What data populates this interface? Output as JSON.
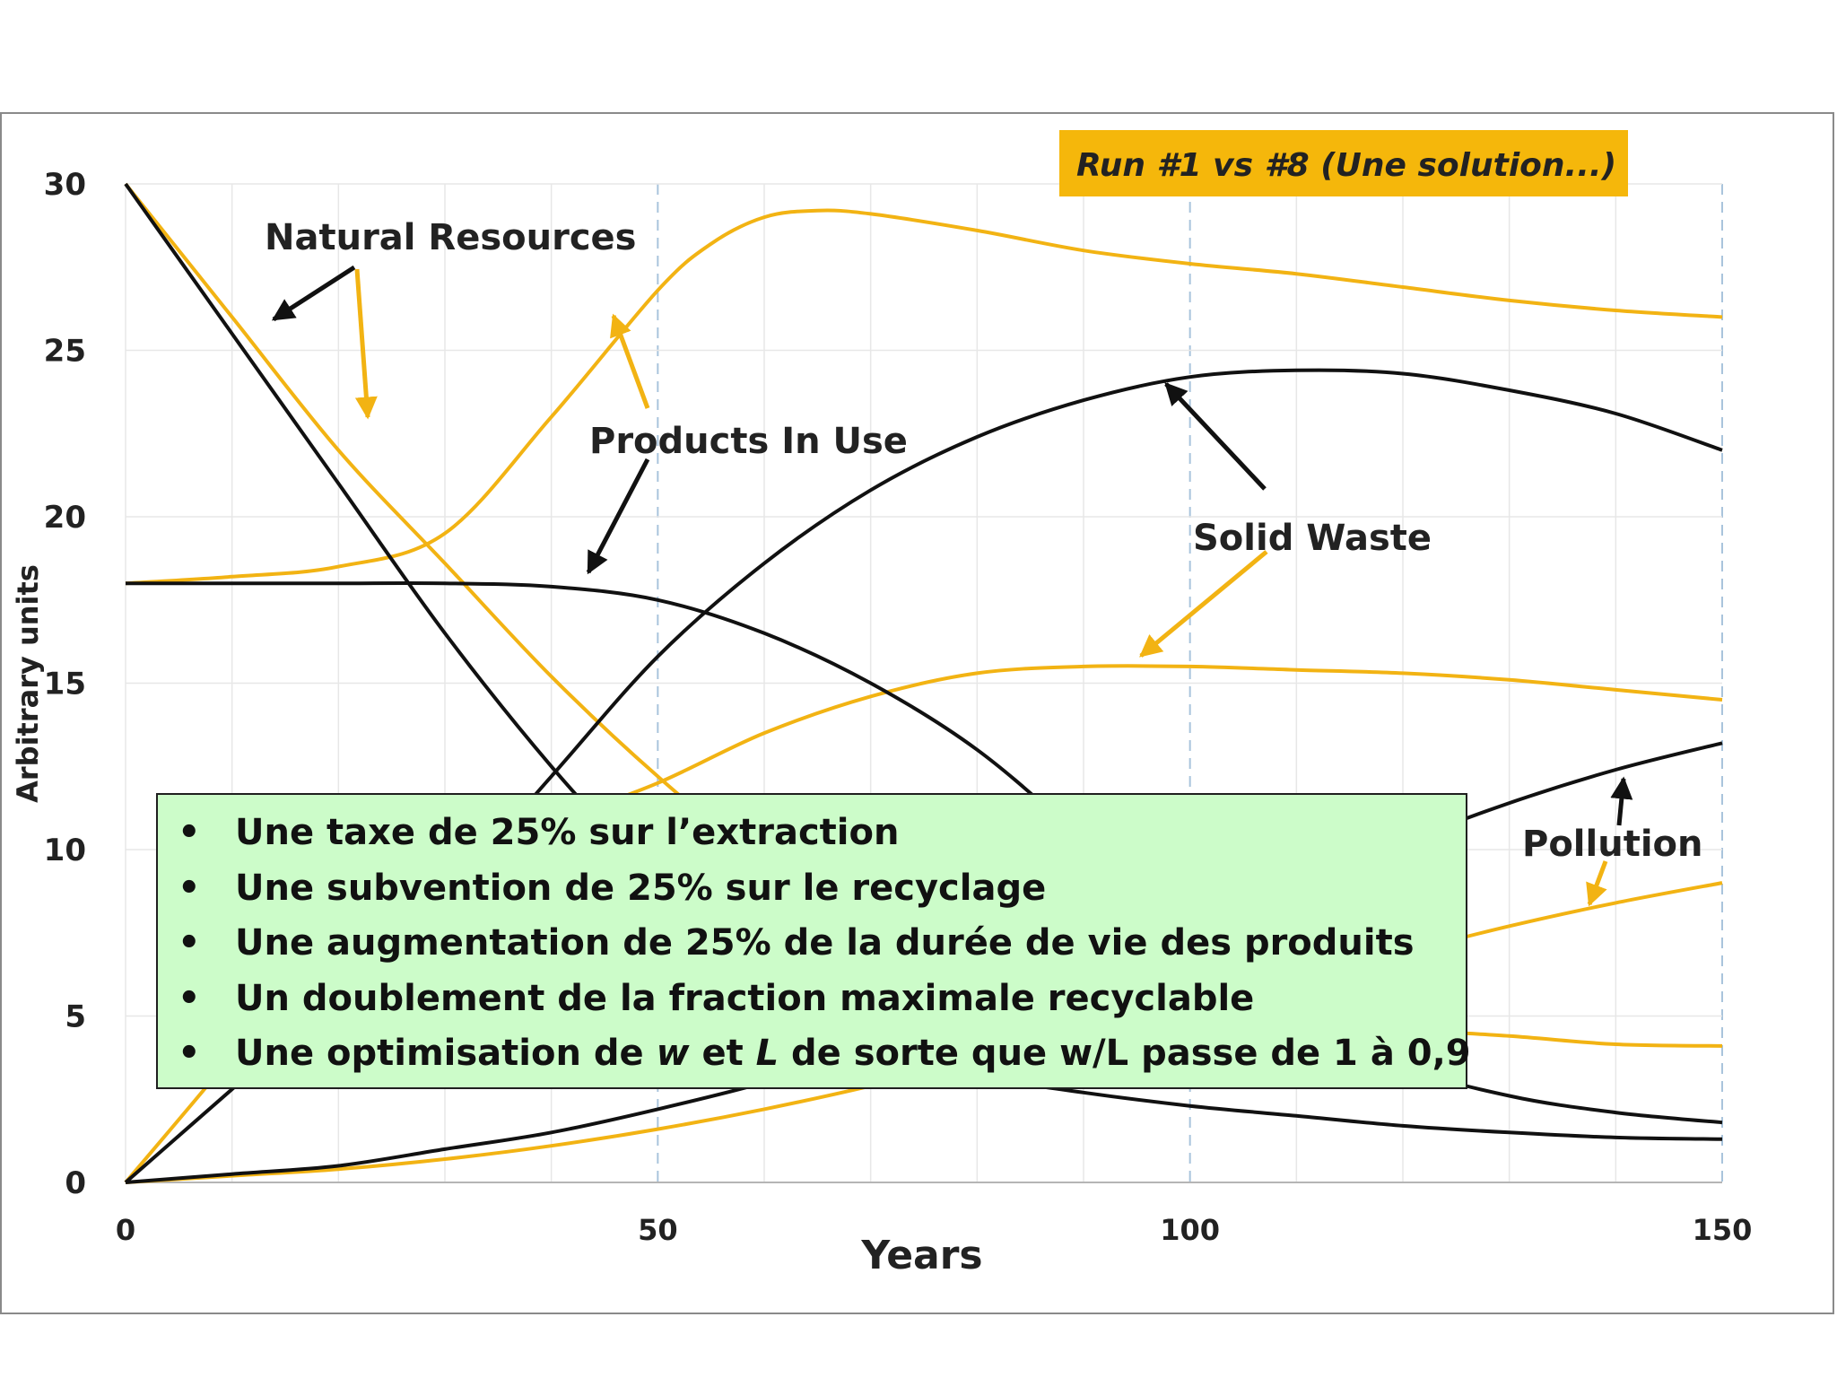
{
  "chart_data": {
    "type": "line",
    "title": "",
    "xlabel": "Years",
    "ylabel": "Arbitrary units",
    "xlim": [
      0,
      150
    ],
    "ylim": [
      0,
      30
    ],
    "x_ticks": [
      "0",
      "50",
      "100",
      "150"
    ],
    "y_ticks": [
      "0",
      "5",
      "10",
      "15",
      "20",
      "25",
      "30"
    ],
    "grid": true,
    "legend_box": "Run #1 vs #8 (Une solution...)",
    "run_colors": {
      "run1": "#111111",
      "run8": "#f2b313"
    },
    "series": [
      {
        "run": "run1",
        "points": [
          [
            0,
            30
          ],
          [
            10,
            25.5
          ],
          [
            20,
            21
          ],
          [
            30,
            16.5
          ],
          [
            40,
            12.5
          ],
          [
            50,
            9
          ],
          [
            60,
            5.8
          ],
          [
            70,
            4.0
          ],
          [
            80,
            3.2
          ],
          [
            90,
            2.7
          ],
          [
            100,
            2.3
          ],
          [
            110,
            2.0
          ],
          [
            120,
            1.7
          ],
          [
            130,
            1.5
          ],
          [
            140,
            1.35
          ],
          [
            150,
            1.3
          ]
        ]
      },
      {
        "run": "run8",
        "points": [
          [
            0,
            30
          ],
          [
            10,
            26
          ],
          [
            20,
            22
          ],
          [
            30,
            18.6
          ],
          [
            40,
            15.2
          ],
          [
            50,
            12.2
          ],
          [
            60,
            9.6
          ],
          [
            70,
            7.8
          ],
          [
            80,
            6.7
          ],
          [
            90,
            5.9
          ],
          [
            100,
            5.3
          ],
          [
            110,
            4.9
          ],
          [
            120,
            4.6
          ],
          [
            130,
            4.4
          ],
          [
            140,
            4.15
          ],
          [
            150,
            4.1
          ]
        ]
      },
      {
        "run": "run1",
        "points": [
          [
            0,
            18
          ],
          [
            10,
            18
          ],
          [
            20,
            18
          ],
          [
            30,
            18
          ],
          [
            40,
            17.9
          ],
          [
            50,
            17.5
          ],
          [
            60,
            16.5
          ],
          [
            70,
            15
          ],
          [
            80,
            13
          ],
          [
            90,
            10.3
          ],
          [
            100,
            7.5
          ],
          [
            110,
            5.2
          ],
          [
            120,
            3.5
          ],
          [
            130,
            2.6
          ],
          [
            140,
            2.1
          ],
          [
            150,
            1.8
          ]
        ]
      },
      {
        "run": "run8",
        "points": [
          [
            0,
            18
          ],
          [
            10,
            18.2
          ],
          [
            20,
            18.5
          ],
          [
            30,
            19.5
          ],
          [
            40,
            23
          ],
          [
            50,
            26.8
          ],
          [
            55,
            28.2
          ],
          [
            60,
            29
          ],
          [
            65,
            29.2
          ],
          [
            70,
            29.1
          ],
          [
            80,
            28.6
          ],
          [
            90,
            28
          ],
          [
            100,
            27.6
          ],
          [
            110,
            27.3
          ],
          [
            120,
            26.9
          ],
          [
            130,
            26.5
          ],
          [
            140,
            26.2
          ],
          [
            150,
            26
          ]
        ]
      },
      {
        "run": "run1",
        "points": [
          [
            0,
            0
          ],
          [
            10,
            2.8
          ],
          [
            20,
            5.6
          ],
          [
            30,
            8.6
          ],
          [
            40,
            12.2
          ],
          [
            50,
            15.8
          ],
          [
            60,
            18.6
          ],
          [
            70,
            20.8
          ],
          [
            80,
            22.4
          ],
          [
            90,
            23.5
          ],
          [
            100,
            24.2
          ],
          [
            110,
            24.4
          ],
          [
            120,
            24.3
          ],
          [
            130,
            23.8
          ],
          [
            140,
            23.1
          ],
          [
            150,
            22
          ]
        ]
      },
      {
        "run": "run8",
        "points": [
          [
            0,
            0
          ],
          [
            10,
            3.8
          ],
          [
            20,
            7.8
          ],
          [
            30,
            9.5
          ],
          [
            40,
            10.8
          ],
          [
            50,
            12
          ],
          [
            60,
            13.5
          ],
          [
            70,
            14.6
          ],
          [
            80,
            15.3
          ],
          [
            90,
            15.5
          ],
          [
            100,
            15.5
          ],
          [
            110,
            15.4
          ],
          [
            120,
            15.3
          ],
          [
            130,
            15.1
          ],
          [
            140,
            14.8
          ],
          [
            150,
            14.5
          ]
        ]
      },
      {
        "run": "run1",
        "points": [
          [
            0,
            0
          ],
          [
            10,
            0.25
          ],
          [
            20,
            0.5
          ],
          [
            30,
            1
          ],
          [
            40,
            1.5
          ],
          [
            50,
            2.2
          ],
          [
            60,
            3
          ],
          [
            70,
            4
          ],
          [
            80,
            5
          ],
          [
            90,
            6.2
          ],
          [
            100,
            7.5
          ],
          [
            110,
            8.8
          ],
          [
            120,
            10.2
          ],
          [
            130,
            11.4
          ],
          [
            140,
            12.4
          ],
          [
            150,
            13.2
          ]
        ]
      },
      {
        "run": "run8",
        "points": [
          [
            0,
            0
          ],
          [
            10,
            0.2
          ],
          [
            20,
            0.4
          ],
          [
            30,
            0.7
          ],
          [
            40,
            1.1
          ],
          [
            50,
            1.6
          ],
          [
            60,
            2.2
          ],
          [
            70,
            2.9
          ],
          [
            80,
            3.7
          ],
          [
            90,
            4.5
          ],
          [
            100,
            5.3
          ],
          [
            110,
            6.1
          ],
          [
            120,
            6.9
          ],
          [
            130,
            7.7
          ],
          [
            140,
            8.4
          ],
          [
            150,
            9
          ]
        ]
      }
    ],
    "annotations": [
      "Natural Resources",
      "Products In Use",
      "Solid Waste",
      "Pollution"
    ]
  },
  "notes": [
    {
      "before": "Une taxe de 25% sur l’extraction",
      "italic1": "",
      "mid": "",
      "italic2": "",
      "after": ""
    },
    {
      "before": "Une subvention de 25% sur le recyclage",
      "italic1": "",
      "mid": "",
      "italic2": "",
      "after": ""
    },
    {
      "before": "Une augmentation de 25% de la durée de vie des produits",
      "italic1": "",
      "mid": "",
      "italic2": "",
      "after": ""
    },
    {
      "before": "Un doublement de la fraction maximale recyclable",
      "italic1": "",
      "mid": "",
      "italic2": "",
      "after": ""
    },
    {
      "before": "Une optimisation de ",
      "italic1": "w",
      "mid": " et ",
      "italic2": "L",
      "after": " de sorte que w/L passe de 1 à 0,9"
    }
  ]
}
